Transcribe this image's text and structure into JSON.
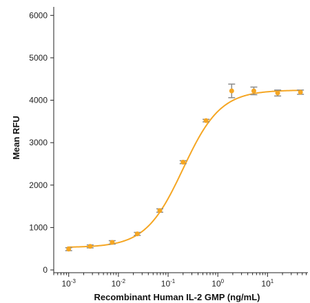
{
  "chart_data": {
    "type": "scatter",
    "title": "",
    "xlabel": "Recombinant Human IL-2 GMP (ng/mL)",
    "ylabel": "Mean RFU",
    "x_scale": "log",
    "xlim": [
      0.0005,
      65
    ],
    "ylim": [
      0,
      6200
    ],
    "x_ticks": [
      {
        "base": "10",
        "exp": "-3",
        "value": 0.001
      },
      {
        "base": "10",
        "exp": "-2",
        "value": 0.01
      },
      {
        "base": "10",
        "exp": "-1",
        "value": 0.1
      },
      {
        "base": "10",
        "exp": "0",
        "value": 1
      },
      {
        "base": "10",
        "exp": "1",
        "value": 10
      }
    ],
    "y_ticks": [
      "0",
      "1000",
      "2000",
      "3000",
      "4000",
      "5000",
      "6000"
    ],
    "y_tick_values": [
      0,
      1000,
      2000,
      3000,
      4000,
      5000,
      6000
    ],
    "grid": false,
    "marker_color": "#f5a623",
    "curve_color": "#f5a623",
    "errorbar_color": "#8a8a8a",
    "points": [
      {
        "x": 0.001,
        "y": 490,
        "err": 35
      },
      {
        "x": 0.0027,
        "y": 555,
        "err": 35
      },
      {
        "x": 0.0075,
        "y": 650,
        "err": 40
      },
      {
        "x": 0.024,
        "y": 850,
        "err": 35
      },
      {
        "x": 0.068,
        "y": 1400,
        "err": 40
      },
      {
        "x": 0.2,
        "y": 2540,
        "err": 35
      },
      {
        "x": 0.58,
        "y": 3520,
        "err": 30
      },
      {
        "x": 1.9,
        "y": 4220,
        "err": 160
      },
      {
        "x": 5.3,
        "y": 4220,
        "err": 90
      },
      {
        "x": 16,
        "y": 4170,
        "err": 70
      },
      {
        "x": 46,
        "y": 4190,
        "err": 50
      }
    ],
    "fit": {
      "bottom": 530,
      "top": 4240,
      "ec50": 0.2,
      "hill": 1.15
    }
  }
}
